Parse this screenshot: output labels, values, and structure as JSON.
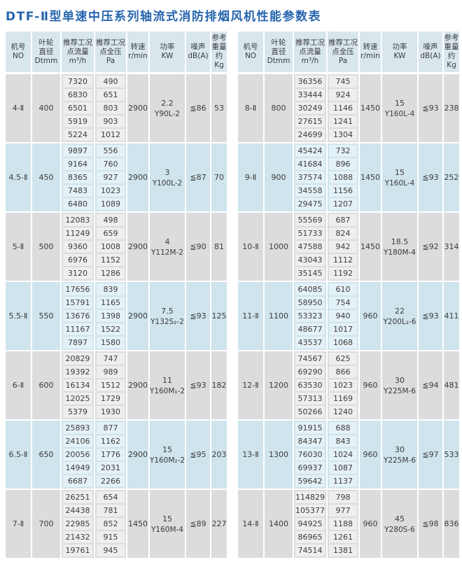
{
  "title": "DTF-Ⅱ型单速中压系列轴流式消防排烟风机性能参数表",
  "columns": [
    {
      "lines": [
        "机号",
        "NO"
      ]
    },
    {
      "lines": [
        "叶轮",
        "直径",
        "Dtmm"
      ]
    },
    {
      "lines": [
        "推荐工况",
        "点流量",
        "m³/h"
      ]
    },
    {
      "lines": [
        "推荐工况",
        "点全压",
        "Pa"
      ]
    },
    {
      "lines": [
        "转速",
        "r/min"
      ]
    },
    {
      "lines": [
        "功率",
        "KW"
      ]
    },
    {
      "lines": [
        "噪声",
        "dB(A)"
      ]
    },
    {
      "lines": [
        "参考",
        "重量",
        "约Kg"
      ]
    }
  ],
  "tables": [
    {
      "groups": [
        {
          "no": "4-Ⅱ",
          "diameter": "400",
          "rows": [
            [
              "7320",
              "490"
            ],
            [
              "6830",
              "651"
            ],
            [
              "6501",
              "803"
            ],
            [
              "5919",
              "903"
            ],
            [
              "5224",
              "1012"
            ]
          ],
          "speed": "2900",
          "power": "2.2",
          "motor": "Y90L-2",
          "noise": "≦86",
          "weight": "53",
          "tone": "gray"
        },
        {
          "no": "4.5-Ⅱ",
          "diameter": "450",
          "rows": [
            [
              "9897",
              "556"
            ],
            [
              "9164",
              "760"
            ],
            [
              "8365",
              "927"
            ],
            [
              "7483",
              "1023"
            ],
            [
              "6480",
              "1089"
            ]
          ],
          "speed": "2900",
          "power": "3",
          "motor": "Y100L-2",
          "noise": "≦87",
          "weight": "70",
          "tone": "blue"
        },
        {
          "no": "5-Ⅱ",
          "diameter": "500",
          "rows": [
            [
              "12083",
              "498"
            ],
            [
              "11249",
              "659"
            ],
            [
              "9360",
              "1008"
            ],
            [
              "6976",
              "1152"
            ],
            [
              "3120",
              "1286"
            ]
          ],
          "speed": "2900",
          "power": "4",
          "motor": "Y112M-2",
          "noise": "≦90",
          "weight": "81",
          "tone": "gray"
        },
        {
          "no": "5.5-Ⅱ",
          "diameter": "550",
          "rows": [
            [
              "17656",
              "839"
            ],
            [
              "15791",
              "1165"
            ],
            [
              "13676",
              "1398"
            ],
            [
              "11167",
              "1522"
            ],
            [
              "7897",
              "1580"
            ]
          ],
          "speed": "2900",
          "power": "7.5",
          "motor": "Y132S₂-2",
          "noise": "≦93",
          "weight": "125",
          "tone": "blue"
        },
        {
          "no": "6-Ⅱ",
          "diameter": "600",
          "rows": [
            [
              "20829",
              "747"
            ],
            [
              "19392",
              "989"
            ],
            [
              "16134",
              "1512"
            ],
            [
              "12025",
              "1729"
            ],
            [
              "5379",
              "1930"
            ]
          ],
          "speed": "2900",
          "power": "11",
          "motor": "Y160M₁-2",
          "noise": "≦93",
          "weight": "182",
          "tone": "gray"
        },
        {
          "no": "6.5-Ⅱ",
          "diameter": "650",
          "rows": [
            [
              "25893",
              "877"
            ],
            [
              "24106",
              "1162"
            ],
            [
              "20056",
              "1776"
            ],
            [
              "14949",
              "2031"
            ],
            [
              "6687",
              "2266"
            ]
          ],
          "speed": "2900",
          "power": "15",
          "motor": "Y160M₂-2",
          "noise": "≦95",
          "weight": "203",
          "tone": "blue"
        },
        {
          "no": "7-Ⅱ",
          "diameter": "700",
          "rows": [
            [
              "26251",
              "654"
            ],
            [
              "24438",
              "781"
            ],
            [
              "22985",
              "852"
            ],
            [
              "21432",
              "915"
            ],
            [
              "19761",
              "945"
            ]
          ],
          "speed": "1450",
          "power": "15",
          "motor": "Y160M-4",
          "noise": "≦89",
          "weight": "227",
          "tone": "gray"
        }
      ]
    },
    {
      "groups": [
        {
          "no": "8-Ⅱ",
          "diameter": "800",
          "rows": [
            [
              "36356",
              "745"
            ],
            [
              "33444",
              "924"
            ],
            [
              "30249",
              "1146"
            ],
            [
              "27615",
              "1241"
            ],
            [
              "24699",
              "1304"
            ]
          ],
          "speed": "1450",
          "power": "15",
          "motor": "Y160L-4",
          "noise": "≦93",
          "weight": "238",
          "tone": "gray"
        },
        {
          "no": "9-Ⅱ",
          "diameter": "900",
          "rows": [
            [
              "45424",
              "732"
            ],
            [
              "41684",
              "896"
            ],
            [
              "37574",
              "1088"
            ],
            [
              "34558",
              "1156"
            ],
            [
              "29475",
              "1207"
            ]
          ],
          "speed": "1450",
          "power": "15",
          "motor": "Y160L-4",
          "noise": "≦93",
          "weight": "252",
          "tone": "blue"
        },
        {
          "no": "10-Ⅱ",
          "diameter": "1000",
          "rows": [
            [
              "55569",
              "687"
            ],
            [
              "51733",
              "824"
            ],
            [
              "47588",
              "942"
            ],
            [
              "43043",
              "1112"
            ],
            [
              "35145",
              "1192"
            ]
          ],
          "speed": "1450",
          "power": "18.5",
          "motor": "Y180M-4",
          "noise": "≦92",
          "weight": "314",
          "tone": "gray"
        },
        {
          "no": "11-Ⅱ",
          "diameter": "1100",
          "rows": [
            [
              "64085",
              "610"
            ],
            [
              "58950",
              "754"
            ],
            [
              "53323",
              "940"
            ],
            [
              "48677",
              "1017"
            ],
            [
              "43537",
              "1068"
            ]
          ],
          "speed": "960",
          "power": "22",
          "motor": "Y200L₂-6",
          "noise": "≦93",
          "weight": "411",
          "tone": "blue"
        },
        {
          "no": "12-Ⅱ",
          "diameter": "1200",
          "rows": [
            [
              "74567",
              "625"
            ],
            [
              "69290",
              "866"
            ],
            [
              "63530",
              "1023"
            ],
            [
              "57313",
              "1169"
            ],
            [
              "50266",
              "1240"
            ]
          ],
          "speed": "960",
          "power": "30",
          "motor": "Y225M-6",
          "noise": "≦94",
          "weight": "481",
          "tone": "gray"
        },
        {
          "no": "13-Ⅱ",
          "diameter": "1300",
          "rows": [
            [
              "91915",
              "688"
            ],
            [
              "84347",
              "843"
            ],
            [
              "76030",
              "1024"
            ],
            [
              "69937",
              "1087"
            ],
            [
              "59642",
              "1137"
            ]
          ],
          "speed": "960",
          "power": "30",
          "motor": "Y225M-6",
          "noise": "≦97",
          "weight": "533",
          "tone": "blue"
        },
        {
          "no": "14-Ⅱ",
          "diameter": "1400",
          "rows": [
            [
              "114829",
              "798"
            ],
            [
              "105377",
              "977"
            ],
            [
              "94925",
              "1188"
            ],
            [
              "86965",
              "1261"
            ],
            [
              "74514",
              "1381"
            ]
          ],
          "speed": "960",
          "power": "45",
          "motor": "Y280S-6",
          "noise": "≦98",
          "weight": "836",
          "tone": "gray"
        }
      ]
    }
  ],
  "colors": {
    "title_blue": "#2766ae",
    "header_bg": "#d9e7ed",
    "gray_band": "#dcdcdc",
    "gray_cell": "#eeeeee",
    "blue_band": "#cfe4ed",
    "blue_cell": "#e4f1f6"
  }
}
